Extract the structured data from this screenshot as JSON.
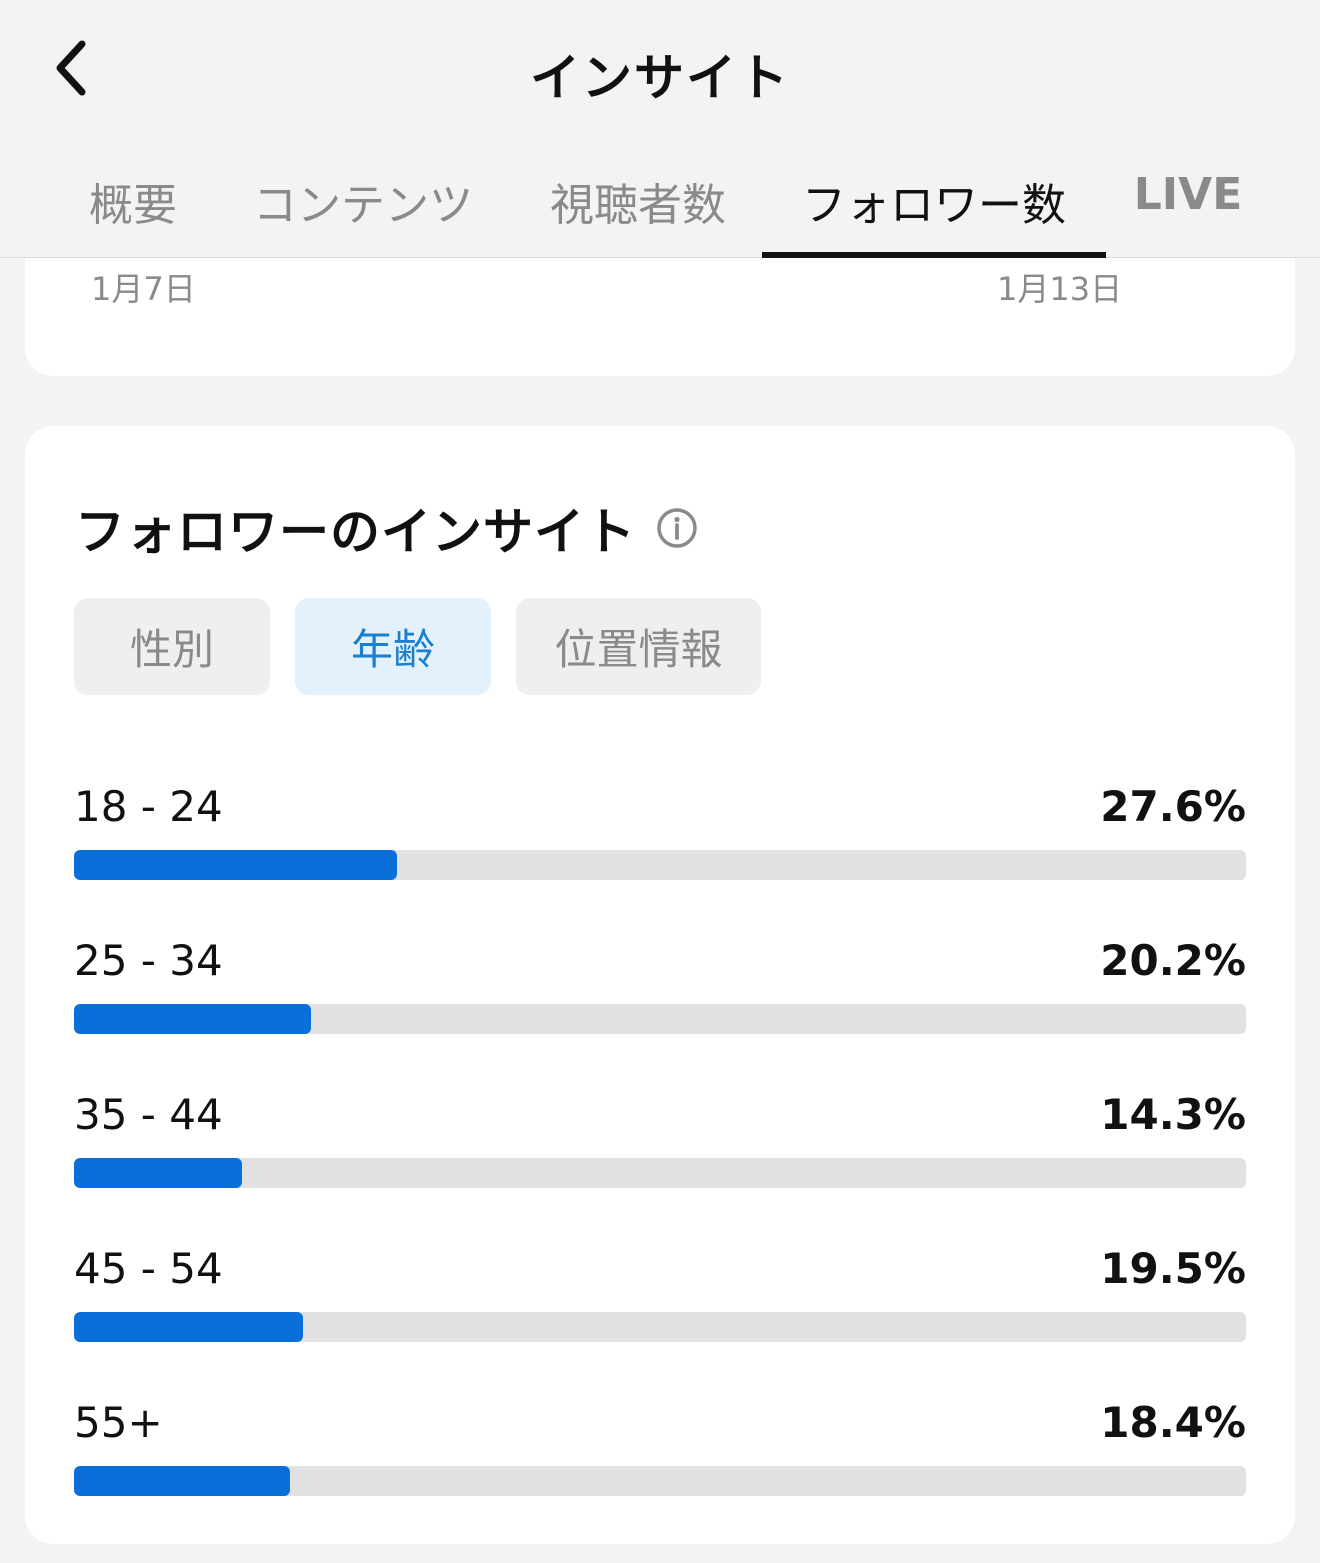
{
  "header": {
    "title": "インサイト",
    "tabs": [
      {
        "label": "概要",
        "active": false
      },
      {
        "label": "コンテンツ",
        "active": false
      },
      {
        "label": "視聴者数",
        "active": false
      },
      {
        "label": "フォロワー数",
        "active": true
      },
      {
        "label": "LIVE",
        "active": false
      }
    ]
  },
  "top_chart": {
    "start_date": "1月7日",
    "end_date": "1月13日"
  },
  "follower_insights": {
    "title": "フォロワーのインサイト",
    "filters": [
      {
        "label": "性別",
        "active": false
      },
      {
        "label": "年齢",
        "active": true
      },
      {
        "label": "位置情報",
        "active": false
      }
    ],
    "age_groups": [
      {
        "label": "18 - 24",
        "percent_text": "27.6%",
        "value": 27.6
      },
      {
        "label": "25 - 34",
        "percent_text": "20.2%",
        "value": 20.2
      },
      {
        "label": "35 - 44",
        "percent_text": "14.3%",
        "value": 14.3
      },
      {
        "label": "45 - 54",
        "percent_text": "19.5%",
        "value": 19.5
      },
      {
        "label": "55+",
        "percent_text": "18.4%",
        "value": 18.4
      }
    ],
    "bar_scale_max": 100
  },
  "colors": {
    "accent": "#0a6fd8",
    "track": "#e1e1e1",
    "active_filter_bg": "#e3f1fc",
    "active_filter_text": "#1a7fd0"
  },
  "icons": {
    "back": "chevron-left-icon",
    "info": "info-circle-icon"
  }
}
